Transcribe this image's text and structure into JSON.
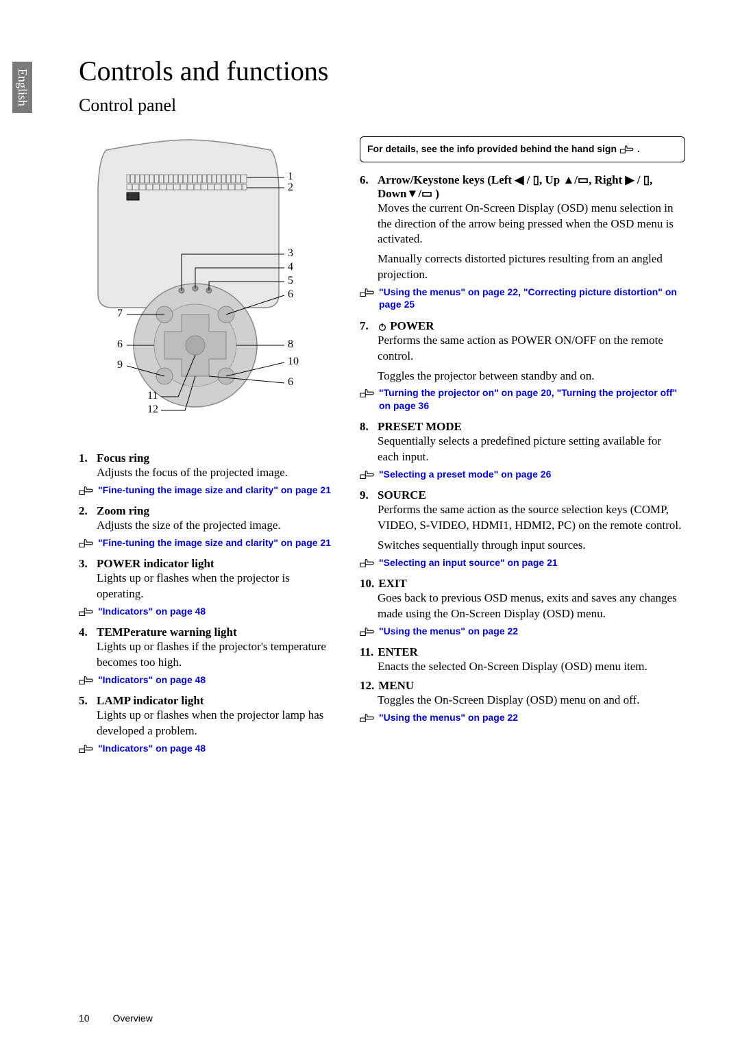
{
  "page": {
    "language_tab": "English",
    "title": "Controls and functions",
    "subtitle": "Control panel",
    "footer_page": "10",
    "footer_section": "Overview"
  },
  "colors": {
    "link": "#0000cc",
    "tab_bg": "#7a7a7a",
    "tab_fg": "#ffffff",
    "text": "#000000"
  },
  "diagram": {
    "callouts": [
      "1",
      "2",
      "3",
      "4",
      "5",
      "6",
      "7",
      "8",
      "6",
      "9",
      "10",
      "6",
      "11",
      "12"
    ]
  },
  "info_box": {
    "text_before": "For details, see the info provided behind the hand sign ",
    "text_after": "."
  },
  "left_items": [
    {
      "num": "1.",
      "title": "Focus ring",
      "desc": [
        "Adjusts the focus of the projected image."
      ],
      "ref": "\"Fine-tuning the image size and clarity\" on page 21"
    },
    {
      "num": "2.",
      "title": "Zoom ring",
      "desc": [
        "Adjusts the size of the projected image."
      ],
      "ref": "\"Fine-tuning the image size and clarity\" on page 21"
    },
    {
      "num": "3.",
      "title": "POWER indicator light",
      "desc": [
        "Lights up or flashes when the projector is operating."
      ],
      "ref": "\"Indicators\" on page 48"
    },
    {
      "num": "4.",
      "title": "TEMPerature warning light",
      "desc": [
        "Lights up or flashes if the projector's temperature becomes too high."
      ],
      "ref": "\"Indicators\" on page 48"
    },
    {
      "num": "5.",
      "title": "LAMP indicator light",
      "desc": [
        "Lights up or flashes when the projector lamp has developed a problem."
      ],
      "ref": "\"Indicators\" on page 48"
    }
  ],
  "right_items": [
    {
      "num": "6.",
      "title_html": "Arrow/Keystone keys (Left ◀ / ▯, Up ▲/▭, Right ▶ / ▯, Down▼/▭ )",
      "desc": [
        "Moves the current On-Screen Display (OSD) menu selection in the direction of the arrow being pressed when the OSD menu is activated.",
        "Manually corrects distorted pictures resulting from an angled projection."
      ],
      "ref": "\"Using the menus\" on page 22, \"Correcting picture distortion\" on page 25"
    },
    {
      "num": "7.",
      "title_prefix_icon": "power",
      "title": "POWER",
      "desc": [
        "Performs the same action as POWER ON/OFF on the remote control.",
        "Toggles the projector between standby and on."
      ],
      "ref": "\"Turning the projector on\" on page 20, \"Turning the projector off\" on page 36"
    },
    {
      "num": "8.",
      "title": "PRESET MODE",
      "desc": [
        "Sequentially selects a predefined picture setting available for each input."
      ],
      "ref": "\"Selecting a preset mode\" on page 26"
    },
    {
      "num": "9.",
      "title": "SOURCE",
      "desc": [
        "Performs the same action as the source selection keys (COMP, VIDEO, S-VIDEO, HDMI1, HDMI2, PC) on the remote control.",
        "Switches sequentially through input sources."
      ],
      "ref": "\"Selecting an input source\" on page 21"
    },
    {
      "num": "10.",
      "title": "EXIT",
      "desc": [
        "Goes back to previous OSD menus, exits and saves any changes made using the On-Screen Display (OSD) menu."
      ],
      "ref": "\"Using the menus\" on page 22"
    },
    {
      "num": "11.",
      "title": "ENTER",
      "desc": [
        "Enacts the selected On-Screen Display (OSD) menu item."
      ]
    },
    {
      "num": "12.",
      "title": "MENU",
      "desc": [
        "Toggles the On-Screen Display (OSD) menu on and off."
      ],
      "ref": "\"Using the menus\" on page 22"
    }
  ]
}
